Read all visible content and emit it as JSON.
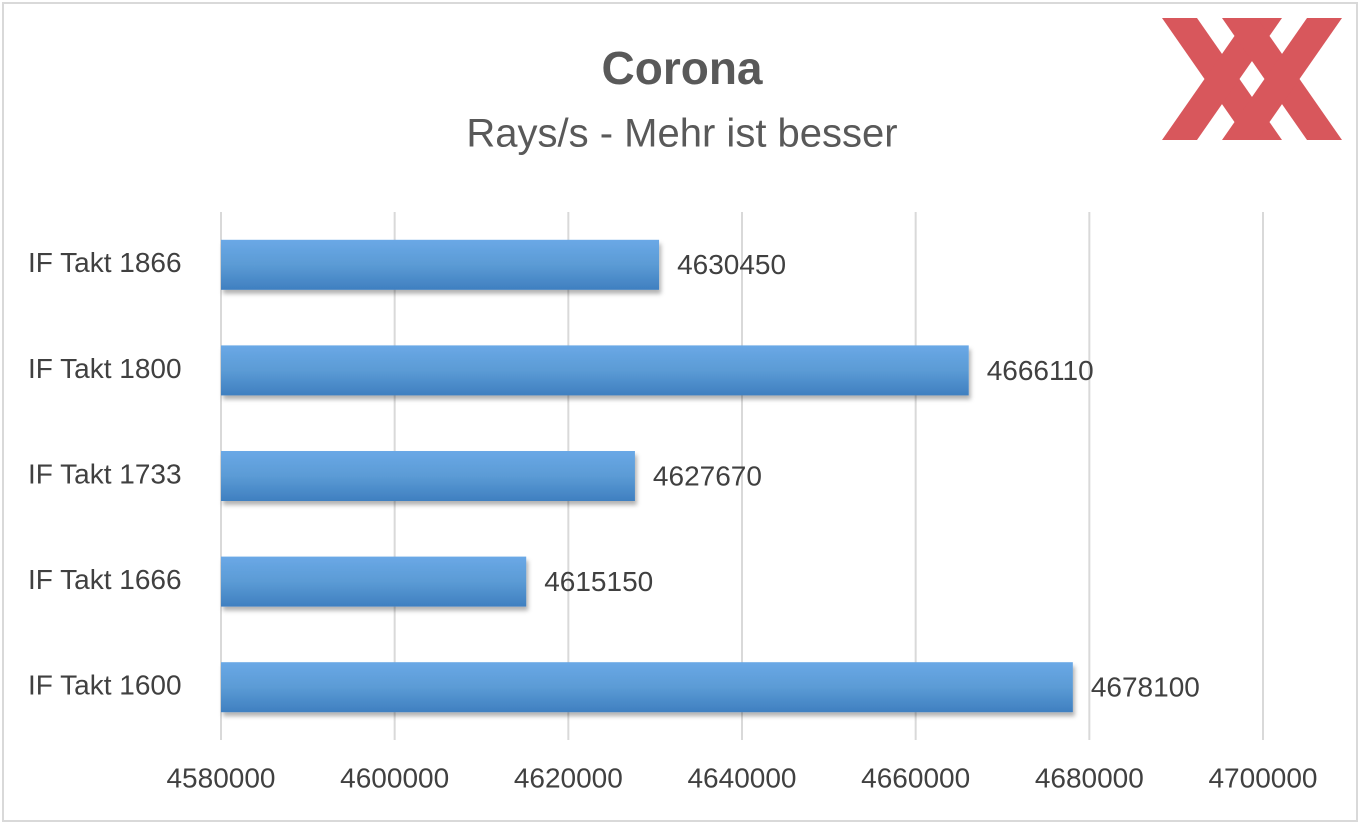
{
  "chart_data": {
    "type": "bar",
    "orientation": "horizontal",
    "title": "Corona",
    "subtitle": "Rays/s - Mehr ist besser",
    "categories": [
      "IF Takt 1866",
      "IF Takt 1800",
      "IF Takt 1733",
      "IF Takt 1666",
      "IF Takt 1600"
    ],
    "values": [
      4630450,
      4666110,
      4627670,
      4615150,
      4678100
    ],
    "color": "#5b9bd5",
    "xlim": [
      4580000,
      4700000
    ],
    "xticks": [
      4580000,
      4600000,
      4620000,
      4640000,
      4660000,
      4680000,
      4700000
    ],
    "grid": true
  }
}
